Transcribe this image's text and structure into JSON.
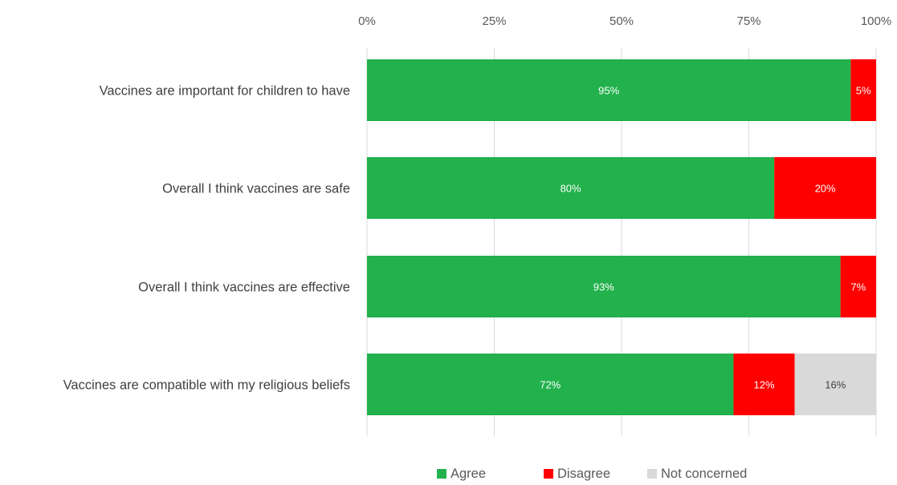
{
  "chart_data": {
    "type": "bar",
    "orientation": "horizontal",
    "stacked": true,
    "title": "",
    "xlabel": "",
    "ylabel": "",
    "xlim": [
      0,
      100
    ],
    "x_axis_position": "top",
    "ticks": [
      0,
      25,
      50,
      75,
      100
    ],
    "tick_labels": [
      "0%",
      "25%",
      "50%",
      "75%",
      "100%"
    ],
    "grid": true,
    "legend_position": "bottom",
    "categories": [
      "Vaccines are important for children to have",
      "Overall I think vaccines are safe",
      "Overall I think vaccines are effective",
      "Vaccines are compatible with my religious beliefs"
    ],
    "series": [
      {
        "name": "Agree",
        "color": "#22b14c",
        "label_color": "#ffffff",
        "values": [
          95,
          80,
          93,
          72
        ],
        "labels": [
          "95%",
          "80%",
          "93%",
          "72%"
        ]
      },
      {
        "name": "Disagree",
        "color": "#ff0000",
        "label_color": "#ffffff",
        "values": [
          5,
          20,
          7,
          12
        ],
        "labels": [
          "5%",
          "20%",
          "7%",
          "12%"
        ]
      },
      {
        "name": "Not concerned",
        "color": "#d9d9d9",
        "label_color": "#404040",
        "values": [
          0,
          0,
          0,
          16
        ],
        "labels": [
          "",
          "",
          "",
          "16%"
        ]
      }
    ]
  }
}
